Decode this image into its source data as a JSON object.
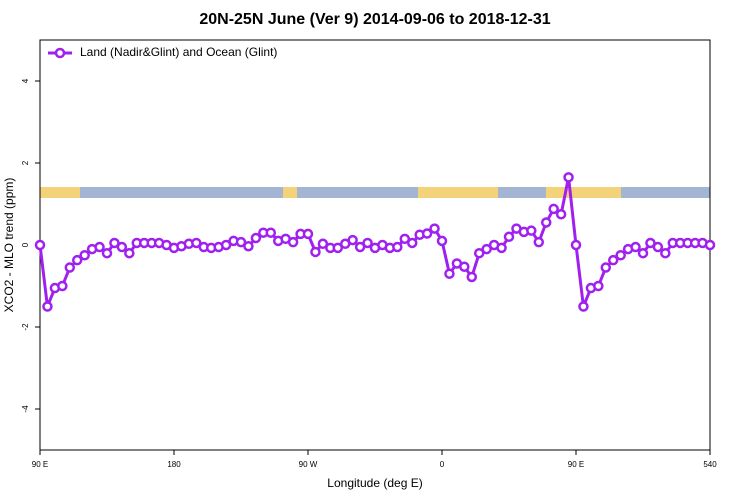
{
  "chart_data": {
    "type": "line",
    "title": "20N-25N June (Ver 9)   2014-09-06 to 2018-12-31",
    "xlabel": "Longitude (deg E)",
    "ylabel": "XCO2 - MLO trend (ppm)",
    "x": [
      90,
      95,
      100,
      105,
      110,
      115,
      120,
      125,
      130,
      135,
      140,
      145,
      150,
      155,
      160,
      165,
      170,
      175,
      180,
      185,
      190,
      195,
      200,
      205,
      210,
      215,
      220,
      225,
      230,
      235,
      240,
      245,
      250,
      255,
      260,
      265,
      270,
      275,
      280,
      285,
      290,
      295,
      300,
      305,
      310,
      315,
      320,
      325,
      330,
      335,
      340,
      345,
      350,
      355,
      360,
      365,
      370,
      375,
      380,
      385,
      390,
      395,
      400,
      405,
      410,
      415,
      420,
      425,
      430,
      435,
      440,
      445,
      450,
      455,
      460,
      465,
      470,
      475,
      480,
      485,
      490,
      495,
      500,
      505,
      510,
      515,
      520,
      525,
      530,
      535,
      540
    ],
    "series": [
      {
        "name": "Land (Nadir&Glint) and Ocean (Glint)",
        "color": "#a020f0",
        "values": [
          0,
          -1.5,
          -1.05,
          -1.0,
          -0.55,
          -0.37,
          -0.25,
          -0.1,
          -0.05,
          -0.2,
          0.05,
          -0.05,
          -0.2,
          0.05,
          0.05,
          0.05,
          0.05,
          0,
          -0.07,
          -0.03,
          0.03,
          0.05,
          -0.05,
          -0.07,
          -0.05,
          0,
          0.1,
          0.07,
          -0.03,
          0.17,
          0.3,
          0.3,
          0.1,
          0.15,
          0.07,
          0.27,
          0.27,
          -0.17,
          0.03,
          -0.07,
          -0.07,
          0.03,
          0.12,
          -0.05,
          0.05,
          -0.07,
          0,
          -0.07,
          -0.05,
          0.15,
          0.05,
          0.25,
          0.28,
          0.4,
          0.1,
          -0.7,
          -0.45,
          -0.53,
          -0.78,
          -0.2,
          -0.1,
          0,
          -0.07,
          0.2,
          0.4,
          0.32,
          0.35,
          0.07,
          0.55,
          0.88,
          0.75,
          1.65,
          0,
          -1.5,
          -1.05,
          -1.0,
          -0.55,
          -0.37,
          -0.25,
          -0.1,
          -0.05,
          -0.2,
          0.05,
          -0.05,
          -0.2,
          0.05,
          0.05,
          0.05,
          0.05,
          0.05,
          0
        ]
      }
    ],
    "xlim": [
      90,
      540
    ],
    "xticks": [
      {
        "value": 90,
        "label": "90 E"
      },
      180,
      {
        "value": 270,
        "label": "90 W"
      },
      {
        "value": 360,
        "label": "0"
      },
      {
        "value": 450,
        "label": "90 E"
      },
      540
    ],
    "ylim": [
      -5,
      5
    ],
    "yticks": [
      -4,
      -2,
      0,
      2,
      4
    ],
    "legend": "top-left"
  }
}
